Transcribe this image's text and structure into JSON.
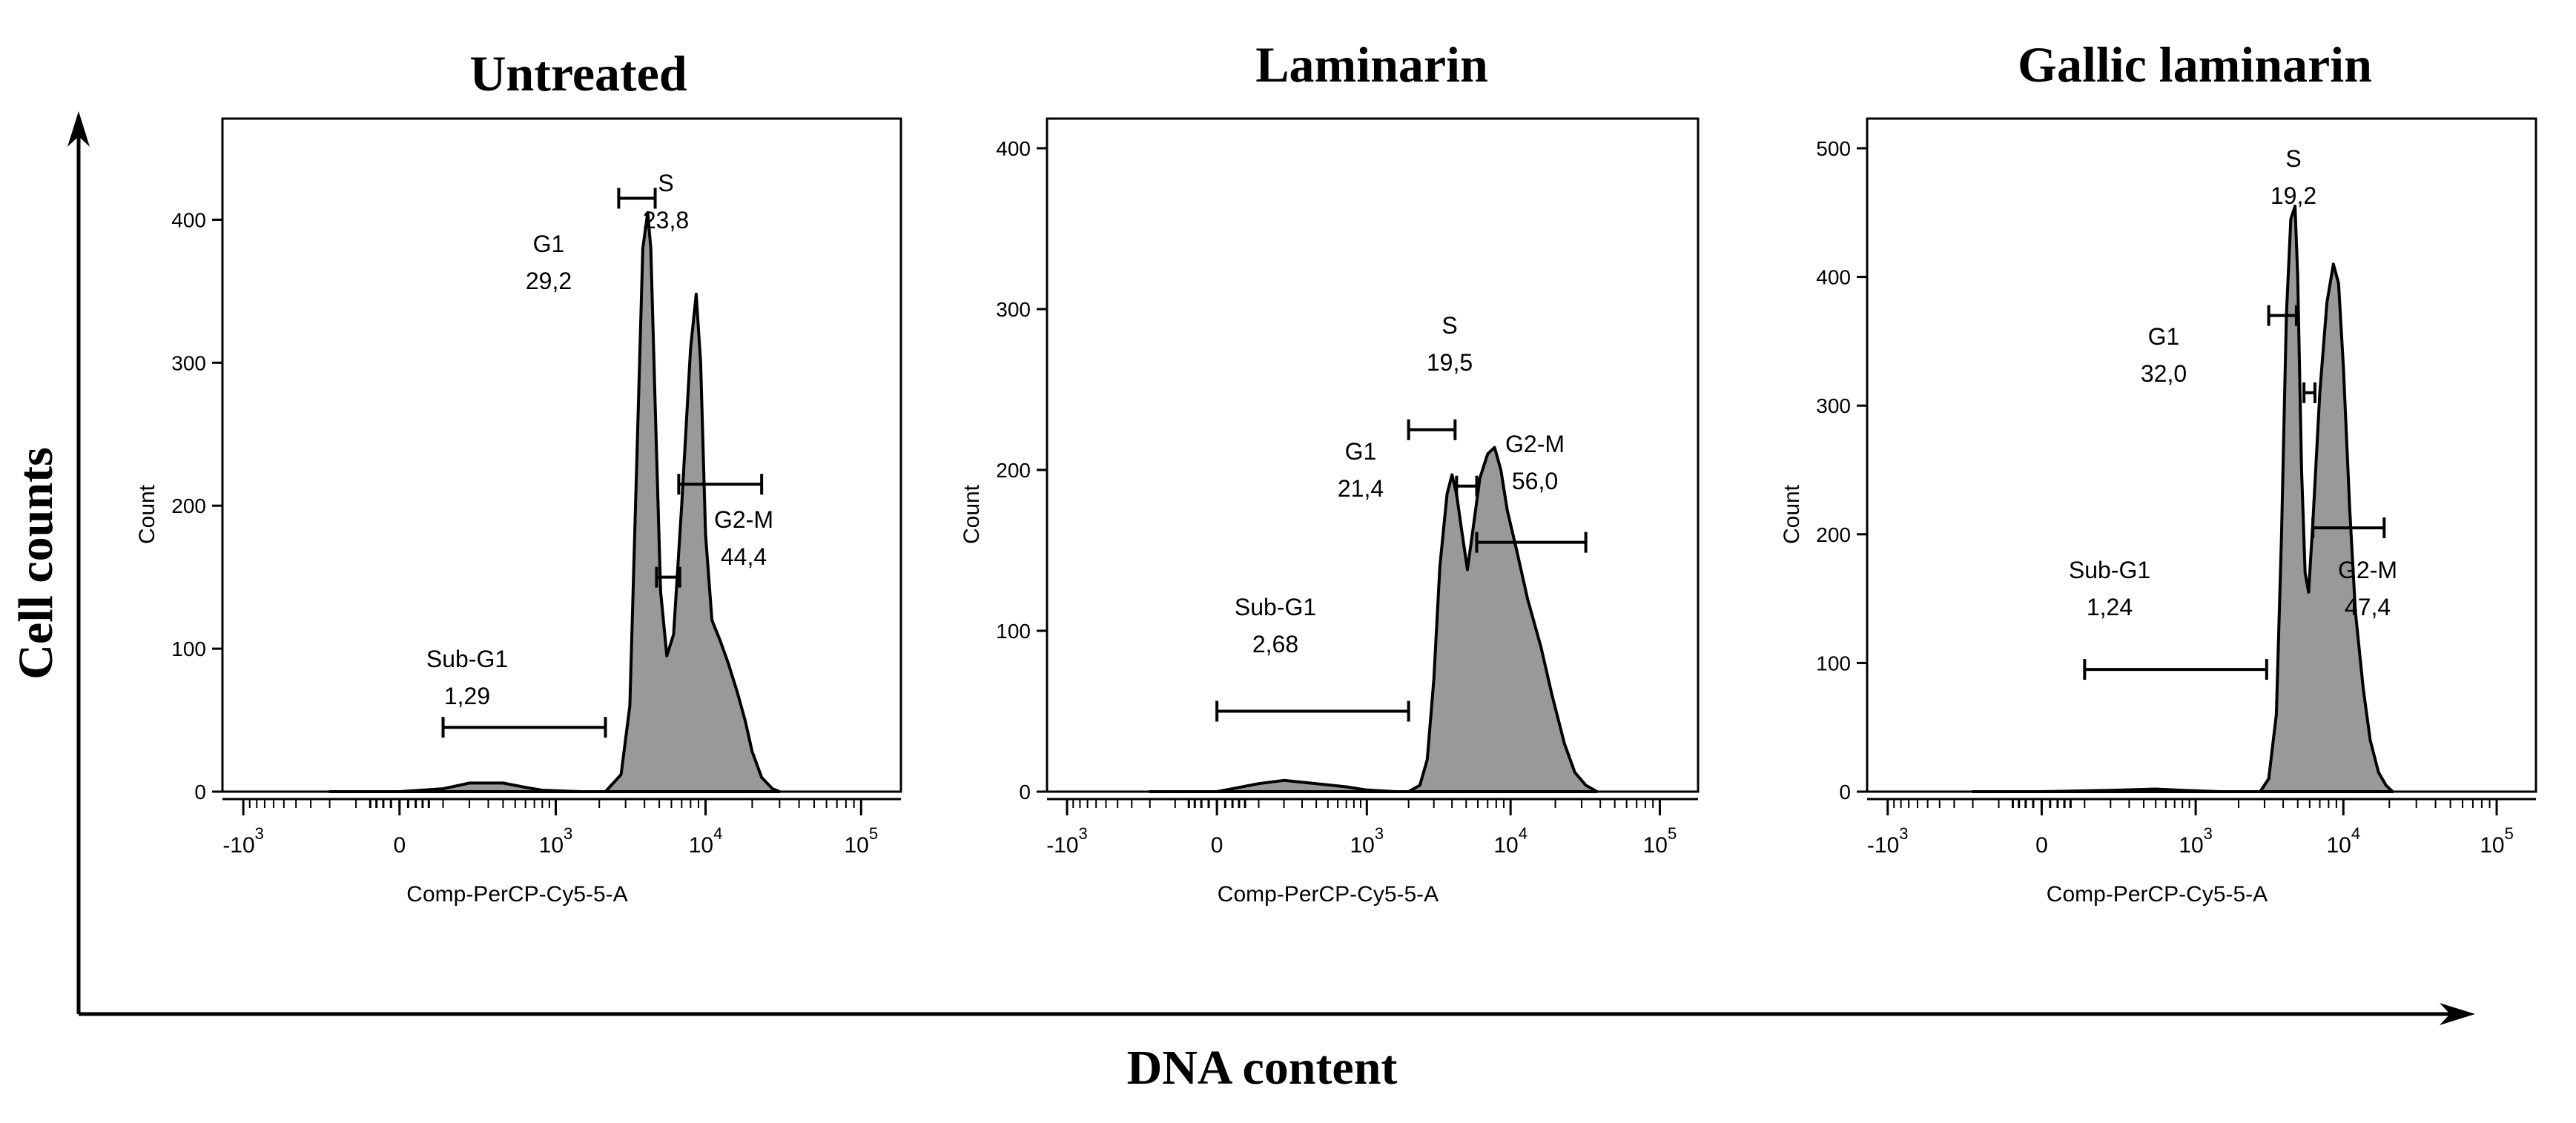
{
  "figure": {
    "y_axis_label": "Cell counts",
    "x_axis_label": "DNA content"
  },
  "chart_data": [
    {
      "type": "area",
      "title": "Untreated",
      "xlabel": "Comp-PerCP-Cy5-5-A",
      "ylabel": "Count",
      "x_scale": "biexponential",
      "x_ticks": [
        "-10^3",
        "0",
        "10^3",
        "10^4",
        "10^5"
      ],
      "y_ticks": [
        0,
        100,
        200,
        300,
        400
      ],
      "ylim": [
        0,
        450
      ],
      "fill_color": "#999999",
      "points": [
        [
          -200,
          0
        ],
        [
          0,
          0
        ],
        [
          100,
          2
        ],
        [
          200,
          6
        ],
        [
          400,
          6
        ],
        [
          600,
          3
        ],
        [
          800,
          1
        ],
        [
          1500,
          0
        ],
        [
          2200,
          0
        ],
        [
          2800,
          12
        ],
        [
          3200,
          60
        ],
        [
          3600,
          250
        ],
        [
          3900,
          380
        ],
        [
          4200,
          405
        ],
        [
          4400,
          380
        ],
        [
          4700,
          270
        ],
        [
          5100,
          140
        ],
        [
          5600,
          95
        ],
        [
          6200,
          110
        ],
        [
          7000,
          200
        ],
        [
          8000,
          310
        ],
        [
          8700,
          348
        ],
        [
          9300,
          300
        ],
        [
          10000,
          180
        ],
        [
          11000,
          120
        ],
        [
          12500,
          105
        ],
        [
          14000,
          90
        ],
        [
          16000,
          70
        ],
        [
          18000,
          50
        ],
        [
          20000,
          28
        ],
        [
          23000,
          10
        ],
        [
          27000,
          2
        ],
        [
          30000,
          0
        ]
      ],
      "gates": [
        {
          "name": "Sub-G1",
          "value": "1,29",
          "x": [
            100,
            2200
          ]
        },
        {
          "name": "G1",
          "value": "29,2",
          "x": [
            2700,
            4700
          ]
        },
        {
          "name": "S",
          "value": "23,8",
          "x": [
            4800,
            6800
          ]
        },
        {
          "name": "G2-M",
          "value": "44,4",
          "x": [
            6700,
            23000
          ]
        }
      ]
    },
    {
      "type": "area",
      "title": "Laminarin",
      "xlabel": "Comp-PerCP-Cy5-5-A",
      "ylabel": "Count",
      "x_scale": "biexponential",
      "x_ticks": [
        "-10^3",
        "0",
        "10^3",
        "10^4",
        "10^5"
      ],
      "y_ticks": [
        0,
        100,
        200,
        300,
        400
      ],
      "ylim": [
        0,
        400
      ],
      "fill_color": "#999999",
      "points": [
        [
          -200,
          0
        ],
        [
          0,
          0
        ],
        [
          100,
          5
        ],
        [
          200,
          7
        ],
        [
          400,
          5
        ],
        [
          700,
          3
        ],
        [
          1000,
          1
        ],
        [
          1600,
          0
        ],
        [
          2000,
          0
        ],
        [
          2400,
          4
        ],
        [
          2700,
          20
        ],
        [
          3000,
          70
        ],
        [
          3300,
          140
        ],
        [
          3700,
          185
        ],
        [
          4000,
          197
        ],
        [
          4300,
          185
        ],
        [
          4700,
          160
        ],
        [
          5100,
          138
        ],
        [
          5600,
          165
        ],
        [
          6200,
          195
        ],
        [
          7000,
          210
        ],
        [
          7800,
          214
        ],
        [
          8600,
          200
        ],
        [
          9500,
          175
        ],
        [
          11000,
          150
        ],
        [
          13000,
          120
        ],
        [
          16000,
          90
        ],
        [
          19000,
          60
        ],
        [
          23000,
          30
        ],
        [
          27000,
          12
        ],
        [
          32000,
          4
        ],
        [
          38000,
          0
        ]
      ],
      "gates": [
        {
          "name": "Sub-G1",
          "value": "2,68",
          "x": [
            0,
            2000
          ]
        },
        {
          "name": "G1",
          "value": "21,4",
          "x": [
            2000,
            4200
          ]
        },
        {
          "name": "S",
          "value": "19,5",
          "x": [
            4300,
            5900
          ]
        },
        {
          "name": "G2-M",
          "value": "56,0",
          "x": [
            5900,
            32000
          ]
        }
      ]
    },
    {
      "type": "area",
      "title": "Gallic laminarin",
      "xlabel": "Comp-PerCP-Cy5-5-A",
      "ylabel": "Count",
      "x_scale": "biexponential",
      "x_ticks": [
        "-10^3",
        "0",
        "10^3",
        "10^4",
        "10^5"
      ],
      "y_ticks": [
        0,
        100,
        200,
        300,
        400,
        500
      ],
      "ylim": [
        0,
        500
      ],
      "fill_color": "#999999",
      "points": [
        [
          -200,
          0
        ],
        [
          0,
          0
        ],
        [
          200,
          1
        ],
        [
          500,
          2
        ],
        [
          800,
          1
        ],
        [
          1500,
          0
        ],
        [
          2800,
          0
        ],
        [
          3200,
          10
        ],
        [
          3600,
          60
        ],
        [
          3900,
          200
        ],
        [
          4200,
          370
        ],
        [
          4500,
          445
        ],
        [
          4800,
          455
        ],
        [
          5000,
          400
        ],
        [
          5300,
          250
        ],
        [
          5600,
          170
        ],
        [
          5900,
          155
        ],
        [
          6300,
          210
        ],
        [
          7000,
          310
        ],
        [
          7800,
          380
        ],
        [
          8600,
          410
        ],
        [
          9300,
          395
        ],
        [
          10000,
          330
        ],
        [
          11000,
          220
        ],
        [
          12000,
          140
        ],
        [
          13500,
          80
        ],
        [
          15000,
          40
        ],
        [
          17000,
          15
        ],
        [
          19000,
          5
        ],
        [
          21000,
          0
        ]
      ],
      "gates": [
        {
          "name": "Sub-G1",
          "value": "1,24",
          "x": [
            100,
            3100
          ]
        },
        {
          "name": "G1",
          "value": "32,0",
          "x": [
            3200,
            4900
          ]
        },
        {
          "name": "S",
          "value": "19,2",
          "x": [
            5500,
            6500
          ]
        },
        {
          "name": "G2-M",
          "value": "47,4",
          "x": [
            6300,
            18500
          ]
        }
      ]
    }
  ]
}
